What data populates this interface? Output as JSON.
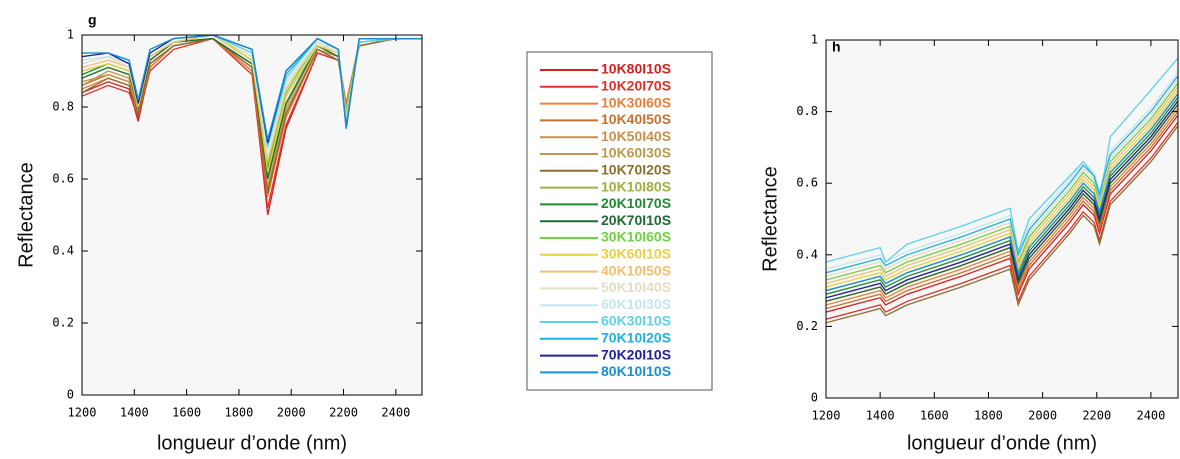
{
  "chart_data": [
    {
      "type": "line",
      "title": "g",
      "x_label": "longueur d’onde (nm)",
      "y_label": "Reflectance",
      "xlim": [
        1200,
        2500
      ],
      "ylim": [
        0,
        1
      ],
      "xticks": [
        1200,
        1400,
        1600,
        1800,
        2000,
        2200,
        2400
      ],
      "yticks": [
        0,
        0.2,
        0.4,
        0.6,
        0.8,
        1
      ],
      "x": [
        1200,
        1300,
        1380,
        1415,
        1460,
        1550,
        1700,
        1850,
        1910,
        1980,
        2100,
        2180,
        2210,
        2260,
        2400,
        2500
      ],
      "series": [
        {
          "name": "10K80I10S",
          "color": "#d42020",
          "values": [
            0.84,
            0.87,
            0.85,
            0.76,
            0.91,
            0.97,
            0.99,
            0.9,
            0.5,
            0.74,
            0.95,
            0.93,
            0.8,
            0.97,
            0.99,
            0.99
          ]
        },
        {
          "name": "10K20I70S",
          "color": "#e0302a",
          "values": [
            0.83,
            0.86,
            0.84,
            0.77,
            0.9,
            0.96,
            0.99,
            0.89,
            0.52,
            0.75,
            0.95,
            0.93,
            0.81,
            0.97,
            0.99,
            0.99
          ]
        },
        {
          "name": "10K30I60S",
          "color": "#e8803a",
          "values": [
            0.85,
            0.88,
            0.86,
            0.78,
            0.91,
            0.97,
            0.99,
            0.9,
            0.55,
            0.77,
            0.96,
            0.93,
            0.8,
            0.97,
            0.99,
            0.99
          ]
        },
        {
          "name": "10K40I50S",
          "color": "#c87030",
          "values": [
            0.86,
            0.89,
            0.87,
            0.78,
            0.92,
            0.97,
            0.99,
            0.91,
            0.57,
            0.78,
            0.96,
            0.94,
            0.81,
            0.98,
            0.99,
            0.99
          ]
        },
        {
          "name": "10K50I40S",
          "color": "#c8904a",
          "values": [
            0.87,
            0.89,
            0.87,
            0.79,
            0.92,
            0.97,
            0.99,
            0.91,
            0.58,
            0.79,
            0.96,
            0.94,
            0.8,
            0.98,
            0.99,
            0.99
          ]
        },
        {
          "name": "10K60I30S",
          "color": "#b89a50",
          "values": [
            0.86,
            0.9,
            0.88,
            0.79,
            0.93,
            0.98,
            0.99,
            0.92,
            0.6,
            0.8,
            0.97,
            0.94,
            0.8,
            0.98,
            0.99,
            0.99
          ]
        },
        {
          "name": "10K70I20S",
          "color": "#8a7030",
          "values": [
            0.84,
            0.88,
            0.86,
            0.78,
            0.92,
            0.97,
            0.99,
            0.91,
            0.56,
            0.78,
            0.96,
            0.93,
            0.79,
            0.97,
            0.99,
            0.99
          ]
        },
        {
          "name": "10K10I80S",
          "color": "#a0b040",
          "values": [
            0.88,
            0.91,
            0.89,
            0.8,
            0.93,
            0.98,
            0.99,
            0.92,
            0.61,
            0.81,
            0.97,
            0.94,
            0.79,
            0.98,
            0.99,
            0.99
          ]
        },
        {
          "name": "20K10I70S",
          "color": "#208a30",
          "values": [
            0.89,
            0.92,
            0.9,
            0.8,
            0.94,
            0.98,
            1,
            0.93,
            0.63,
            0.83,
            0.97,
            0.95,
            0.78,
            0.98,
            0.99,
            0.99
          ]
        },
        {
          "name": "20K70I10S",
          "color": "#1e6a30",
          "values": [
            0.88,
            0.91,
            0.89,
            0.8,
            0.93,
            0.98,
            0.99,
            0.92,
            0.6,
            0.81,
            0.97,
            0.94,
            0.78,
            0.98,
            0.99,
            0.99
          ]
        },
        {
          "name": "30K10I60S",
          "color": "#70d040",
          "values": [
            0.9,
            0.92,
            0.9,
            0.81,
            0.94,
            0.98,
            1,
            0.93,
            0.64,
            0.84,
            0.98,
            0.95,
            0.77,
            0.98,
            0.99,
            0.99
          ]
        },
        {
          "name": "30K60I10S",
          "color": "#e8d040",
          "values": [
            0.9,
            0.92,
            0.9,
            0.8,
            0.94,
            0.98,
            1,
            0.93,
            0.62,
            0.83,
            0.97,
            0.95,
            0.78,
            0.98,
            0.99,
            0.99
          ]
        },
        {
          "name": "40K10I50S",
          "color": "#f0c070",
          "values": [
            0.91,
            0.93,
            0.91,
            0.81,
            0.94,
            0.98,
            1,
            0.94,
            0.65,
            0.85,
            0.98,
            0.95,
            0.77,
            0.98,
            0.99,
            0.99
          ]
        },
        {
          "name": "50K10I40S",
          "color": "#e6dcc6",
          "values": [
            0.92,
            0.94,
            0.91,
            0.81,
            0.95,
            0.99,
            1,
            0.94,
            0.66,
            0.86,
            0.98,
            0.95,
            0.76,
            0.98,
            0.99,
            0.99
          ]
        },
        {
          "name": "60K10I30S",
          "color": "#c4e6ee",
          "values": [
            0.93,
            0.94,
            0.92,
            0.82,
            0.95,
            0.99,
            1,
            0.95,
            0.68,
            0.87,
            0.98,
            0.96,
            0.76,
            0.98,
            0.99,
            0.99
          ]
        },
        {
          "name": "60K30I10S",
          "color": "#60d0e8",
          "values": [
            0.94,
            0.95,
            0.92,
            0.82,
            0.95,
            0.99,
            1,
            0.95,
            0.69,
            0.88,
            0.99,
            0.96,
            0.75,
            0.98,
            0.99,
            0.99
          ]
        },
        {
          "name": "70K10I20S",
          "color": "#20b0e0",
          "values": [
            0.95,
            0.95,
            0.93,
            0.82,
            0.96,
            0.99,
            1,
            0.96,
            0.7,
            0.89,
            0.99,
            0.96,
            0.75,
            0.99,
            0.99,
            0.99
          ]
        },
        {
          "name": "70K20I10S",
          "color": "#2020a0",
          "values": [
            0.94,
            0.95,
            0.92,
            0.81,
            0.95,
            0.99,
            1,
            0.96,
            0.7,
            0.9,
            0.99,
            0.96,
            0.74,
            0.99,
            0.99,
            0.99
          ]
        },
        {
          "name": "80K10I10S",
          "color": "#1890d0",
          "values": [
            0.95,
            0.95,
            0.93,
            0.82,
            0.96,
            0.99,
            1,
            0.96,
            0.71,
            0.9,
            0.99,
            0.96,
            0.74,
            0.99,
            0.99,
            0.99
          ]
        }
      ]
    },
    {
      "type": "line",
      "title": "h",
      "x_label": "longueur d’onde (nm)",
      "y_label": "Reflectance",
      "xlim": [
        1200,
        2500
      ],
      "ylim": [
        0,
        1
      ],
      "xticks": [
        1200,
        1400,
        1600,
        1800,
        2000,
        2200,
        2400
      ],
      "yticks": [
        0,
        0.2,
        0.4,
        0.6,
        0.8,
        1
      ],
      "x": [
        1200,
        1350,
        1400,
        1420,
        1500,
        1700,
        1880,
        1910,
        1950,
        2100,
        2150,
        2190,
        2210,
        2250,
        2400,
        2500
      ],
      "series": [
        {
          "values": [
            0.24,
            0.27,
            0.28,
            0.26,
            0.29,
            0.34,
            0.39,
            0.29,
            0.36,
            0.49,
            0.54,
            0.51,
            0.46,
            0.57,
            0.69,
            0.79
          ]
        },
        {
          "values": [
            0.22,
            0.25,
            0.26,
            0.24,
            0.27,
            0.32,
            0.37,
            0.27,
            0.34,
            0.47,
            0.52,
            0.49,
            0.44,
            0.55,
            0.67,
            0.77
          ]
        },
        {
          "values": [
            0.26,
            0.29,
            0.3,
            0.28,
            0.31,
            0.36,
            0.41,
            0.31,
            0.38,
            0.51,
            0.56,
            0.53,
            0.48,
            0.59,
            0.71,
            0.81
          ]
        },
        {
          "values": [
            0.25,
            0.28,
            0.29,
            0.27,
            0.3,
            0.35,
            0.4,
            0.3,
            0.37,
            0.5,
            0.55,
            0.52,
            0.47,
            0.58,
            0.7,
            0.8
          ]
        },
        {
          "values": [
            0.27,
            0.3,
            0.31,
            0.29,
            0.32,
            0.37,
            0.42,
            0.32,
            0.39,
            0.52,
            0.57,
            0.54,
            0.49,
            0.6,
            0.72,
            0.82
          ]
        },
        {
          "values": [
            0.28,
            0.31,
            0.32,
            0.3,
            0.33,
            0.38,
            0.43,
            0.33,
            0.4,
            0.53,
            0.58,
            0.55,
            0.5,
            0.61,
            0.73,
            0.83
          ]
        },
        {
          "values": [
            0.21,
            0.24,
            0.25,
            0.23,
            0.26,
            0.31,
            0.36,
            0.26,
            0.33,
            0.46,
            0.51,
            0.48,
            0.43,
            0.54,
            0.66,
            0.76
          ]
        },
        {
          "values": [
            0.3,
            0.33,
            0.34,
            0.32,
            0.35,
            0.4,
            0.45,
            0.35,
            0.42,
            0.55,
            0.6,
            0.57,
            0.52,
            0.63,
            0.75,
            0.85
          ]
        },
        {
          "values": [
            0.29,
            0.32,
            0.33,
            0.31,
            0.34,
            0.39,
            0.44,
            0.34,
            0.41,
            0.54,
            0.59,
            0.56,
            0.51,
            0.62,
            0.74,
            0.84
          ]
        },
        {
          "values": [
            0.27,
            0.3,
            0.31,
            0.29,
            0.32,
            0.37,
            0.42,
            0.32,
            0.39,
            0.52,
            0.57,
            0.54,
            0.49,
            0.6,
            0.72,
            0.82
          ]
        },
        {
          "values": [
            0.33,
            0.36,
            0.37,
            0.35,
            0.38,
            0.43,
            0.48,
            0.38,
            0.45,
            0.58,
            0.63,
            0.6,
            0.55,
            0.66,
            0.78,
            0.88
          ]
        },
        {
          "values": [
            0.31,
            0.34,
            0.35,
            0.33,
            0.36,
            0.41,
            0.46,
            0.36,
            0.43,
            0.56,
            0.61,
            0.58,
            0.53,
            0.64,
            0.76,
            0.86
          ]
        },
        {
          "values": [
            0.32,
            0.35,
            0.36,
            0.34,
            0.37,
            0.42,
            0.47,
            0.37,
            0.44,
            0.57,
            0.62,
            0.59,
            0.54,
            0.65,
            0.77,
            0.87
          ]
        },
        {
          "values": [
            0.34,
            0.37,
            0.38,
            0.36,
            0.39,
            0.44,
            0.49,
            0.39,
            0.46,
            0.59,
            0.64,
            0.61,
            0.56,
            0.67,
            0.79,
            0.89
          ]
        },
        {
          "values": [
            0.36,
            0.39,
            0.4,
            0.38,
            0.41,
            0.46,
            0.51,
            0.41,
            0.48,
            0.61,
            0.66,
            0.63,
            0.58,
            0.69,
            0.81,
            0.91
          ]
        },
        {
          "values": [
            0.38,
            0.41,
            0.42,
            0.38,
            0.43,
            0.48,
            0.53,
            0.41,
            0.5,
            0.62,
            0.66,
            0.62,
            0.55,
            0.73,
            0.86,
            0.95
          ]
        },
        {
          "values": [
            0.35,
            0.38,
            0.39,
            0.37,
            0.4,
            0.45,
            0.5,
            0.4,
            0.47,
            0.6,
            0.65,
            0.62,
            0.57,
            0.68,
            0.8,
            0.9
          ]
        },
        {
          "values": [
            0.28,
            0.31,
            0.32,
            0.3,
            0.33,
            0.38,
            0.43,
            0.33,
            0.4,
            0.53,
            0.58,
            0.55,
            0.5,
            0.61,
            0.73,
            0.83
          ]
        },
        {
          "values": [
            0.3,
            0.33,
            0.34,
            0.32,
            0.35,
            0.4,
            0.45,
            0.35,
            0.42,
            0.55,
            0.6,
            0.57,
            0.52,
            0.63,
            0.75,
            0.85
          ]
        }
      ]
    }
  ]
}
